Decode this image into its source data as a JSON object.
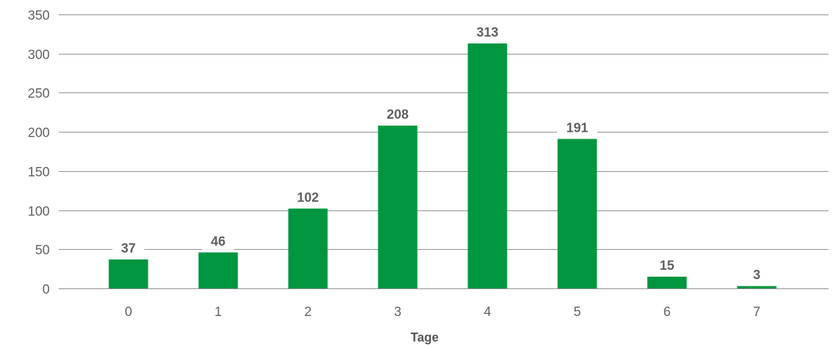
{
  "chart_data": {
    "type": "bar",
    "categories": [
      "0",
      "1",
      "2",
      "3",
      "4",
      "5",
      "6",
      "7"
    ],
    "values": [
      37,
      46,
      102,
      208,
      313,
      191,
      15,
      3
    ],
    "data_labels": [
      "37",
      "46",
      "102",
      "208",
      "313",
      "191",
      "15",
      "3"
    ],
    "title": "",
    "xlabel": "Tage",
    "ylabel": "",
    "ylim": [
      0,
      350
    ],
    "yticks": [
      0,
      50,
      100,
      150,
      200,
      250,
      300,
      350
    ],
    "grid": true,
    "legend": "none",
    "colors": {
      "bar": "#009640",
      "gridline": "#8a8a8a",
      "text": "#5f5f5f"
    }
  }
}
